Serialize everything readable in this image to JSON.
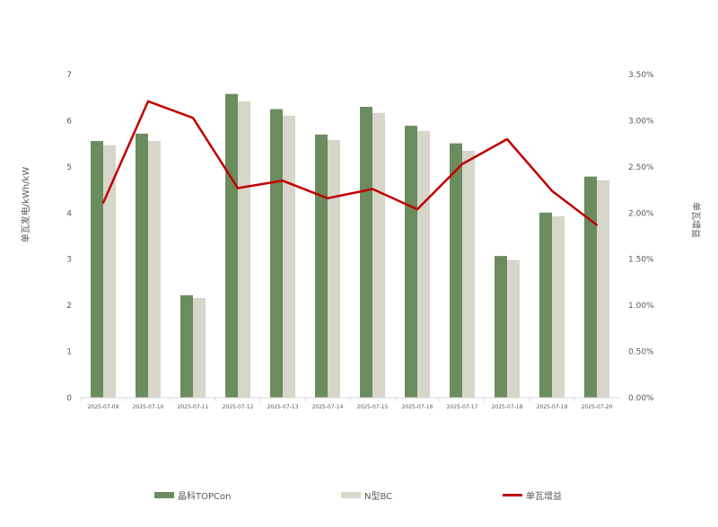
{
  "chart_data": {
    "type": "bar",
    "categories": [
      "2025-07-09",
      "2025-07-10",
      "2025-07-11",
      "2025-07-12",
      "2025-07-13",
      "2025-07-14",
      "2025-07-15",
      "2025-07-16",
      "2025-07-17",
      "2025-07-18",
      "2025-07-19",
      "2025-07-20"
    ],
    "series": [
      {
        "name": "晶科TOPCon",
        "type": "bar",
        "axis": "left",
        "color": "#6b8c5e",
        "values": [
          5.56,
          5.72,
          2.22,
          6.58,
          6.25,
          5.7,
          6.3,
          5.89,
          5.51,
          3.07,
          4.01,
          4.79
        ]
      },
      {
        "name": "N型BC",
        "type": "bar",
        "axis": "left",
        "color": "#d6d6cb",
        "values": [
          5.47,
          5.56,
          2.16,
          6.42,
          6.11,
          5.58,
          6.17,
          5.78,
          5.35,
          2.98,
          3.93,
          4.71
        ]
      },
      {
        "name": "单瓦增益",
        "type": "line",
        "axis": "right",
        "color": "#c00000",
        "values": [
          2.11,
          3.21,
          3.03,
          2.27,
          2.35,
          2.16,
          2.26,
          2.04,
          2.53,
          2.8,
          2.24,
          1.87
        ]
      }
    ],
    "ylabel": "单瓦发电/kWh/kW",
    "y2label": "单瓦增益",
    "ylim": [
      0,
      7
    ],
    "y2lim": [
      0,
      3.5
    ],
    "yticks": [
      "0",
      "1",
      "2",
      "3",
      "4",
      "5",
      "6",
      "7"
    ],
    "y2ticks": [
      "0.00%",
      "0.50%",
      "1.00%",
      "1.50%",
      "2.00%",
      "2.50%",
      "3.00%",
      "3.50%"
    ],
    "grid": false,
    "legend": "bottom"
  }
}
